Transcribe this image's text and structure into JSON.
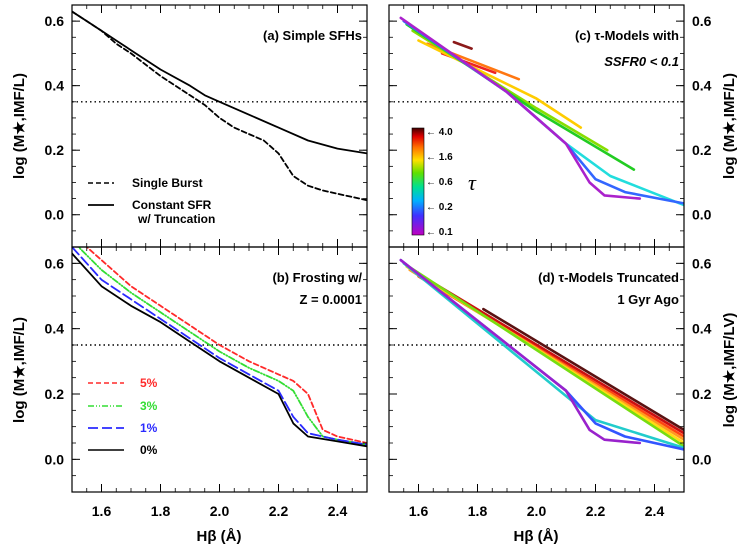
{
  "figure": {
    "xlabel": "Hβ (Å)",
    "ylabel_left": "log (M★,IMF/L)",
    "ylabel_right_c": "log (M★,IMF/L)",
    "ylabel_right_d": "log (M★,IMF/LV)"
  },
  "chart_data": [
    {
      "panel": "a",
      "type": "line",
      "title": "(a) Simple SFHs",
      "xlim": [
        1.5,
        2.5
      ],
      "ylim": [
        -0.1,
        0.65
      ],
      "xticks": [
        "1.6",
        "1.8",
        "2.0",
        "2.2",
        "2.4"
      ],
      "yticks": [
        "0.0",
        "0.2",
        "0.4",
        "0.6"
      ],
      "reference_line_y": 0.35,
      "legend": [
        "Single Burst",
        "Constant SFR",
        "w/ Truncation"
      ],
      "series": [
        {
          "name": "Single Burst",
          "style": "dashed",
          "x": [
            1.5,
            1.55,
            1.6,
            1.65,
            1.7,
            1.8,
            1.9,
            1.95,
            2.0,
            2.05,
            2.1,
            2.15,
            2.2,
            2.25,
            2.3,
            2.35,
            2.4,
            2.45,
            2.5
          ],
          "y": [
            0.63,
            0.6,
            0.57,
            0.53,
            0.5,
            0.43,
            0.37,
            0.34,
            0.3,
            0.27,
            0.25,
            0.23,
            0.19,
            0.12,
            0.09,
            0.075,
            0.065,
            0.055,
            0.045
          ]
        },
        {
          "name": "Constant SFR w/ Truncation",
          "style": "solid",
          "x": [
            1.5,
            1.55,
            1.6,
            1.65,
            1.7,
            1.8,
            1.9,
            1.95,
            2.0,
            2.1,
            2.2,
            2.3,
            2.4,
            2.5
          ],
          "y": [
            0.63,
            0.6,
            0.57,
            0.54,
            0.51,
            0.45,
            0.4,
            0.37,
            0.35,
            0.31,
            0.27,
            0.23,
            0.205,
            0.19
          ]
        }
      ]
    },
    {
      "panel": "b",
      "type": "line",
      "title": "(b) Frosting w/",
      "title2": "Z = 0.0001",
      "xlim": [
        1.5,
        2.5
      ],
      "ylim": [
        -0.1,
        0.65
      ],
      "xticks": [
        "1.6",
        "1.8",
        "2.0",
        "2.2",
        "2.4"
      ],
      "yticks": [
        "0.0",
        "0.2",
        "0.4",
        "0.6"
      ],
      "reference_line_y": 0.35,
      "legend": [
        "5%",
        "3%",
        "1%",
        "0%"
      ],
      "series": [
        {
          "name": "5%",
          "color": "#ff2a2a",
          "style": "dashed",
          "x": [
            1.5,
            1.6,
            1.7,
            1.8,
            1.9,
            2.0,
            2.1,
            2.2,
            2.25,
            2.3,
            2.35,
            2.4,
            2.5
          ],
          "y": [
            0.69,
            0.61,
            0.53,
            0.47,
            0.41,
            0.35,
            0.3,
            0.26,
            0.24,
            0.2,
            0.09,
            0.07,
            0.05
          ]
        },
        {
          "name": "3%",
          "color": "#33dd33",
          "style": "dash-dot",
          "x": [
            1.5,
            1.6,
            1.7,
            1.8,
            1.9,
            2.0,
            2.1,
            2.2,
            2.25,
            2.3,
            2.35,
            2.4,
            2.5
          ],
          "y": [
            0.67,
            0.58,
            0.51,
            0.45,
            0.39,
            0.33,
            0.28,
            0.24,
            0.21,
            0.13,
            0.07,
            0.06,
            0.045
          ]
        },
        {
          "name": "1%",
          "color": "#2a2aff",
          "style": "long-dash",
          "x": [
            1.5,
            1.6,
            1.7,
            1.8,
            1.9,
            2.0,
            2.1,
            2.2,
            2.25,
            2.3,
            2.4,
            2.5
          ],
          "y": [
            0.65,
            0.55,
            0.49,
            0.43,
            0.37,
            0.31,
            0.26,
            0.21,
            0.13,
            0.08,
            0.06,
            0.045
          ]
        },
        {
          "name": "0%",
          "color": "#000000",
          "style": "solid",
          "x": [
            1.5,
            1.6,
            1.7,
            1.8,
            1.9,
            2.0,
            2.1,
            2.2,
            2.25,
            2.3,
            2.4,
            2.5
          ],
          "y": [
            0.63,
            0.53,
            0.47,
            0.42,
            0.36,
            0.3,
            0.25,
            0.2,
            0.11,
            0.07,
            0.055,
            0.04
          ]
        }
      ]
    },
    {
      "panel": "c",
      "type": "line",
      "title": "(c) τ-Models with",
      "title2": "SSFR0 < 0.1",
      "xlim": [
        1.5,
        2.5
      ],
      "ylim": [
        -0.1,
        0.65
      ],
      "xticks": [
        "1.6",
        "1.8",
        "2.0",
        "2.2",
        "2.4"
      ],
      "yticks": [
        "0.0",
        "0.2",
        "0.4",
        "0.6"
      ],
      "reference_line_y": 0.35,
      "colorbar": {
        "label": "τ",
        "ticks": [
          "4.0",
          "1.6",
          "0.6",
          "0.2",
          "0.1"
        ]
      },
      "series": [
        {
          "tau": 4.0,
          "color": "#8b1a1a",
          "x": [
            1.72,
            1.78
          ],
          "y": [
            0.535,
            0.515
          ]
        },
        {
          "tau": 2.5,
          "color": "#ee2222",
          "x": [
            1.68,
            1.86
          ],
          "y": [
            0.5,
            0.44
          ]
        },
        {
          "tau": 1.6,
          "color": "#ff7711",
          "x": [
            1.63,
            1.94
          ],
          "y": [
            0.53,
            0.42
          ]
        },
        {
          "tau": 1.0,
          "color": "#ffcc00",
          "x": [
            1.6,
            2.0,
            2.15
          ],
          "y": [
            0.54,
            0.36,
            0.27
          ]
        },
        {
          "tau": 0.6,
          "color": "#88dd00",
          "x": [
            1.58,
            2.0,
            2.24
          ],
          "y": [
            0.57,
            0.33,
            0.2
          ]
        },
        {
          "tau": 0.4,
          "color": "#22cc22",
          "x": [
            1.56,
            2.0,
            2.33
          ],
          "y": [
            0.59,
            0.32,
            0.14
          ]
        },
        {
          "tau": 0.3,
          "color": "#22dddd",
          "x": [
            1.55,
            1.9,
            2.1,
            2.25,
            2.5
          ],
          "y": [
            0.6,
            0.38,
            0.22,
            0.12,
            0.03
          ]
        },
        {
          "tau": 0.2,
          "color": "#3366ff",
          "x": [
            1.55,
            1.9,
            2.1,
            2.2,
            2.3,
            2.5
          ],
          "y": [
            0.6,
            0.38,
            0.22,
            0.11,
            0.07,
            0.035
          ]
        },
        {
          "tau": 0.1,
          "color": "#aa22cc",
          "x": [
            1.54,
            1.9,
            2.1,
            2.18,
            2.23,
            2.35
          ],
          "y": [
            0.61,
            0.38,
            0.22,
            0.1,
            0.06,
            0.05
          ]
        }
      ]
    },
    {
      "panel": "d",
      "type": "line",
      "title": "(d) τ-Models Truncated",
      "title2": "1 Gyr Ago",
      "xlim": [
        1.5,
        2.5
      ],
      "ylim": [
        -0.1,
        0.65
      ],
      "xticks": [
        "1.6",
        "1.8",
        "2.0",
        "2.2",
        "2.4"
      ],
      "yticks": [
        "0.0",
        "0.2",
        "0.4",
        "0.6"
      ],
      "reference_line_y": 0.35,
      "series": [
        {
          "tau": 4.0,
          "color": "#5a1212",
          "x": [
            1.82,
            2.5
          ],
          "y": [
            0.46,
            0.09
          ]
        },
        {
          "tau": 2.5,
          "color": "#cc1111",
          "x": [
            1.65,
            2.5
          ],
          "y": [
            0.54,
            0.08
          ]
        },
        {
          "tau": 1.6,
          "color": "#ff4411",
          "x": [
            1.6,
            2.5
          ],
          "y": [
            0.56,
            0.07
          ]
        },
        {
          "tau": 1.0,
          "color": "#ff9922",
          "x": [
            1.57,
            2.5
          ],
          "y": [
            0.58,
            0.06
          ]
        },
        {
          "tau": 0.6,
          "color": "#ffdd11",
          "x": [
            1.56,
            2.5
          ],
          "y": [
            0.59,
            0.05
          ]
        },
        {
          "tau": 0.4,
          "color": "#77dd11",
          "x": [
            1.55,
            2.5
          ],
          "y": [
            0.6,
            0.04
          ]
        },
        {
          "tau": 0.3,
          "color": "#22cccc",
          "x": [
            1.55,
            2.2,
            2.5
          ],
          "y": [
            0.6,
            0.12,
            0.035
          ]
        },
        {
          "tau": 0.2,
          "color": "#3355ff",
          "x": [
            1.54,
            2.1,
            2.2,
            2.3,
            2.5
          ],
          "y": [
            0.61,
            0.21,
            0.11,
            0.07,
            0.03
          ]
        },
        {
          "tau": 0.1,
          "color": "#9922cc",
          "x": [
            1.54,
            2.1,
            2.18,
            2.23,
            2.35
          ],
          "y": [
            0.61,
            0.21,
            0.09,
            0.06,
            0.05
          ]
        }
      ]
    }
  ]
}
